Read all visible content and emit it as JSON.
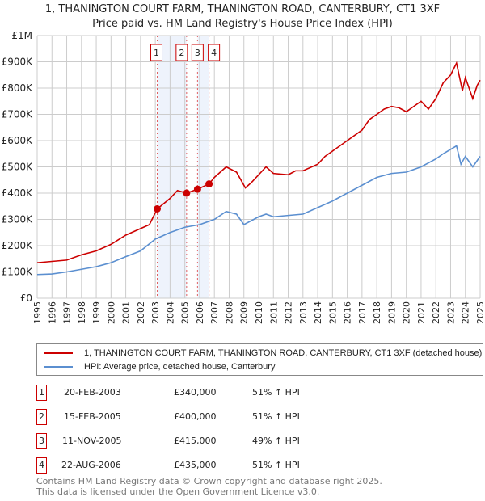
{
  "title_line1": "1, THANINGTON COURT FARM, THANINGTON ROAD, CANTERBURY, CT1 3XF",
  "title_line2": "Price paid vs. HM Land Registry's House Price Index (HPI)",
  "chart_data": {
    "type": "line",
    "title": "1, THANINGTON COURT FARM, THANINGTON ROAD, CANTERBURY, CT1 3XF — Price paid vs. HM Land Registry's House Price Index (HPI)",
    "xlim": [
      1995,
      2025
    ],
    "ylim": [
      0,
      1000000
    ],
    "x_ticks": [
      "1995",
      "1996",
      "1997",
      "1998",
      "1999",
      "2000",
      "2001",
      "2002",
      "2003",
      "2004",
      "2005",
      "2006",
      "2007",
      "2008",
      "2009",
      "2010",
      "2011",
      "2012",
      "2013",
      "2014",
      "2015",
      "2016",
      "2017",
      "2018",
      "2019",
      "2020",
      "2021",
      "2022",
      "2023",
      "2024",
      "2025"
    ],
    "y_ticks": [
      {
        "v": 0,
        "label": "£0"
      },
      {
        "v": 100000,
        "label": "£100K"
      },
      {
        "v": 200000,
        "label": "£200K"
      },
      {
        "v": 300000,
        "label": "£300K"
      },
      {
        "v": 400000,
        "label": "£400K"
      },
      {
        "v": 500000,
        "label": "£500K"
      },
      {
        "v": 600000,
        "label": "£600K"
      },
      {
        "v": 700000,
        "label": "£700K"
      },
      {
        "v": 800000,
        "label": "£800K"
      },
      {
        "v": 900000,
        "label": "£900K"
      },
      {
        "v": 1000000,
        "label": "£1M"
      }
    ],
    "grid": true,
    "series": [
      {
        "name": "1, THANINGTON COURT FARM, THANINGTON ROAD, CANTERBURY, CT1 3XF (detached house)",
        "color": "#cc0000",
        "x": [
          1995,
          1996,
          1997,
          1998,
          1999,
          2000,
          2001,
          2002,
          2002.6,
          2003.13,
          2004,
          2004.5,
          2005.12,
          2005.86,
          2006.64,
          2007,
          2007.8,
          2008.5,
          2009.1,
          2009.5,
          2010,
          2010.5,
          2011,
          2012,
          2012.5,
          2013,
          2014,
          2014.5,
          2015,
          2016,
          2017,
          2017.5,
          2018,
          2018.5,
          2019,
          2019.5,
          2020,
          2020.5,
          2021,
          2021.5,
          2022,
          2022.5,
          2023,
          2023.4,
          2023.8,
          2024,
          2024.5,
          2024.8,
          2025
        ],
        "y": [
          135000,
          140000,
          145000,
          165000,
          180000,
          205000,
          240000,
          265000,
          280000,
          340000,
          380000,
          410000,
          400000,
          415000,
          435000,
          460000,
          500000,
          480000,
          420000,
          440000,
          470000,
          500000,
          475000,
          470000,
          485000,
          485000,
          510000,
          540000,
          560000,
          600000,
          640000,
          680000,
          700000,
          720000,
          730000,
          725000,
          710000,
          730000,
          750000,
          720000,
          760000,
          820000,
          850000,
          895000,
          790000,
          840000,
          760000,
          810000,
          830000
        ]
      },
      {
        "name": "HPI: Average price, detached house, Canterbury",
        "color": "#5b8fd0",
        "x": [
          1995,
          1996,
          1997,
          1998,
          1999,
          2000,
          2001,
          2002,
          2003,
          2004,
          2005,
          2006,
          2007,
          2007.8,
          2008.5,
          2009,
          2009.5,
          2010,
          2010.5,
          2011,
          2012,
          2013,
          2014,
          2015,
          2016,
          2017,
          2018,
          2019,
          2020,
          2021,
          2022,
          2022.5,
          2023.4,
          2023.7,
          2024,
          2024.5,
          2025
        ],
        "y": [
          90000,
          92000,
          100000,
          110000,
          120000,
          135000,
          158000,
          180000,
          225000,
          250000,
          270000,
          280000,
          300000,
          330000,
          320000,
          280000,
          295000,
          310000,
          320000,
          310000,
          315000,
          320000,
          345000,
          370000,
          400000,
          430000,
          460000,
          475000,
          480000,
          500000,
          530000,
          550000,
          580000,
          510000,
          540000,
          500000,
          540000
        ]
      }
    ],
    "shaded_ranges": [
      [
        2003.13,
        2005.12
      ],
      [
        2005.86,
        2006.64
      ]
    ],
    "annotations": [
      {
        "label": "1",
        "x": 2003.13,
        "y": 340000
      },
      {
        "label": "2",
        "x": 2005.12,
        "y": 400000
      },
      {
        "label": "3",
        "x": 2005.86,
        "y": 415000
      },
      {
        "label": "4",
        "x": 2006.64,
        "y": 435000
      }
    ]
  },
  "legend": [
    {
      "label": "1, THANINGTON COURT FARM, THANINGTON ROAD, CANTERBURY, CT1 3XF (detached house)",
      "color": "#cc0000"
    },
    {
      "label": "HPI: Average price, detached house, Canterbury",
      "color": "#5b8fd0"
    }
  ],
  "transactions": [
    {
      "num": "1",
      "date": "20-FEB-2003",
      "price": "£340,000",
      "hpi": "51% ↑ HPI"
    },
    {
      "num": "2",
      "date": "15-FEB-2005",
      "price": "£400,000",
      "hpi": "51% ↑ HPI"
    },
    {
      "num": "3",
      "date": "11-NOV-2005",
      "price": "£415,000",
      "hpi": "49% ↑ HPI"
    },
    {
      "num": "4",
      "date": "22-AUG-2006",
      "price": "£435,000",
      "hpi": "51% ↑ HPI"
    }
  ],
  "footer_line1": "Contains HM Land Registry data © Crown copyright and database right 2025.",
  "footer_line2": "This data is licensed under the Open Government Licence v3.0."
}
